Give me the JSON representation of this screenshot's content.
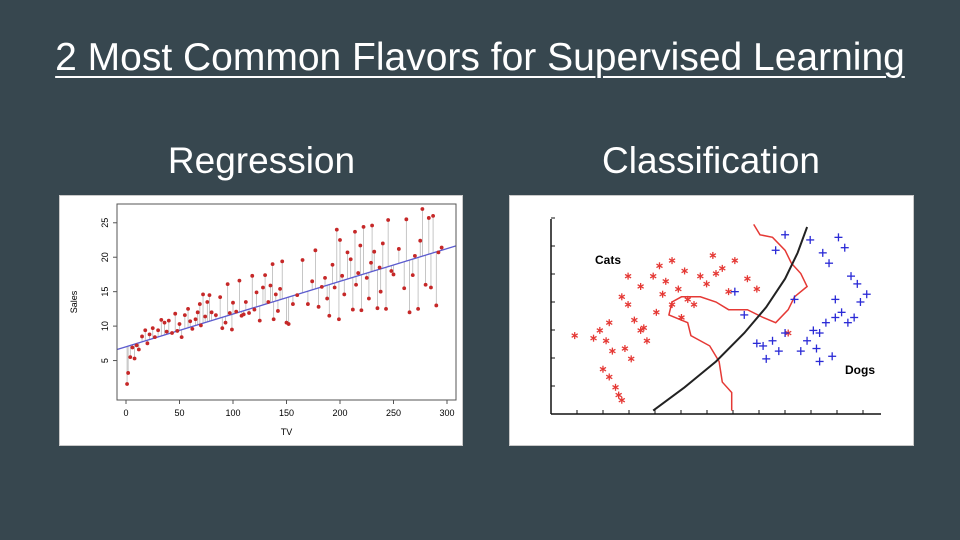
{
  "slide": {
    "title": "2 Most Common Flavors for Supervised Learning",
    "left_heading": "Regression",
    "right_heading": "Classification",
    "background_color": "#37474f"
  },
  "chart_data": [
    {
      "type": "scatter",
      "xlabel": "TV",
      "ylabel": "Sales",
      "xlim": [
        0,
        300
      ],
      "ylim": [
        0,
        27
      ],
      "x_ticks": [
        "0",
        "50",
        "100",
        "150",
        "200",
        "250",
        "300"
      ],
      "y_ticks": [
        "5",
        "10",
        "15",
        "20",
        "25"
      ],
      "grid": false,
      "point_color": "#c62828",
      "fit_line_color": "#5c5ccf",
      "residual_color": "#b8b8b8",
      "fit_line": {
        "intercept": 7.0,
        "slope": 0.0475
      },
      "points": {
        "x": [
          1,
          2,
          4,
          6,
          8,
          10,
          12,
          15,
          18,
          20,
          22,
          25,
          27,
          30,
          33,
          36,
          38,
          40,
          43,
          46,
          48,
          50,
          52,
          55,
          58,
          60,
          62,
          65,
          67,
          69,
          70,
          72,
          74,
          76,
          78,
          80,
          84,
          88,
          90,
          93,
          95,
          97,
          99,
          100,
          103,
          106,
          108,
          110,
          112,
          115,
          118,
          120,
          122,
          125,
          128,
          130,
          133,
          135,
          137,
          138,
          140,
          142,
          144,
          146,
          150,
          152,
          156,
          160,
          165,
          170,
          174,
          177,
          180,
          183,
          186,
          188,
          190,
          193,
          195,
          197,
          199,
          200,
          202,
          204,
          207,
          210,
          212,
          214,
          215,
          217,
          219,
          220,
          222,
          225,
          227,
          229,
          230,
          232,
          235,
          237,
          238,
          240,
          243,
          245,
          248,
          250,
          255,
          260,
          262,
          265,
          268,
          270,
          273,
          275,
          277,
          280,
          283,
          285,
          287,
          290,
          292,
          295
        ],
        "y": [
          1.6,
          3.2,
          5.5,
          6.9,
          5.3,
          7.2,
          6.6,
          8.5,
          9.4,
          7.5,
          8.8,
          9.7,
          8.4,
          9.4,
          10.9,
          10.5,
          9.2,
          10.8,
          9.0,
          11.8,
          9.3,
          10.3,
          8.4,
          11.6,
          12.5,
          10.7,
          9.6,
          11.0,
          12.0,
          13.2,
          10.1,
          14.6,
          11.4,
          13.5,
          14.5,
          12.0,
          11.6,
          14.2,
          9.7,
          10.5,
          16.1,
          11.9,
          9.5,
          13.4,
          12.1,
          16.6,
          11.5,
          11.7,
          13.5,
          11.9,
          17.3,
          12.4,
          14.9,
          10.8,
          15.6,
          17.4,
          13.5,
          15.9,
          19.0,
          11.0,
          14.6,
          12.2,
          15.4,
          19.4,
          10.5,
          10.3,
          13.2,
          14.5,
          19.6,
          13.2,
          16.5,
          21.0,
          12.8,
          15.7,
          17.0,
          14.0,
          11.5,
          18.9,
          15.6,
          24.0,
          11.0,
          22.5,
          17.3,
          14.6,
          20.7,
          19.7,
          12.4,
          23.7,
          16.0,
          17.7,
          21.7,
          12.3,
          24.4,
          17.0,
          14.0,
          19.2,
          24.6,
          20.8,
          12.6,
          18.5,
          15.0,
          22.0,
          12.5,
          25.4,
          18.0,
          17.5,
          21.2,
          15.5,
          25.5,
          12.0,
          17.4,
          20.2,
          12.5,
          22.4,
          27.0,
          16.0,
          25.7,
          15.6,
          26.0,
          13.0,
          20.7,
          21.4
        ]
      }
    },
    {
      "type": "scatter",
      "annotations": [
        "Cats",
        "Dogs"
      ],
      "cats_color": "#e53935",
      "dogs_color": "#2a2ad6",
      "boundary_color": "#e53935",
      "linear_boundary_color": "#222222",
      "cats": {
        "x": [
          0.5,
          1.6,
          1.4,
          1.6,
          1.8,
          1.9,
          2.0,
          1.5,
          1.7,
          1.3,
          1.1,
          2.3,
          2.1,
          2.7,
          2.2,
          2.6,
          3.0,
          3.2,
          3.4,
          3.6,
          3.3,
          3.8,
          4.1,
          4.3,
          4.7,
          5.0,
          5.4,
          5.6,
          6.0,
          6.3,
          5.2,
          4.9,
          3.6,
          3.9,
          4.5,
          4.0,
          2.4,
          2.6,
          2.8,
          3.1,
          2.0,
          2.2,
          7.3
        ],
        "y": [
          2.8,
          3.3,
          1.5,
          1.2,
          0.8,
          0.5,
          0.3,
          2.6,
          2.2,
          3.0,
          2.7,
          1.9,
          2.3,
          3.1,
          4.0,
          4.7,
          5.1,
          5.5,
          4.9,
          5.7,
          4.4,
          4.6,
          4.2,
          4.0,
          4.8,
          5.2,
          4.5,
          5.7,
          5.0,
          4.6,
          5.4,
          5.9,
          4.0,
          3.5,
          5.1,
          5.3,
          3.4,
          3.0,
          2.6,
          3.7,
          4.3,
          5.1,
          2.9
        ]
      },
      "dogs": {
        "x": [
          7.0,
          7.2,
          6.5,
          6.3,
          6.6,
          6.8,
          7.7,
          7.9,
          8.1,
          8.3,
          8.5,
          8.8,
          9.0,
          8.7,
          9.2,
          9.4,
          8.2,
          7.5,
          9.6,
          9.8,
          8.9,
          9.1,
          8.0,
          7.2,
          6.9,
          8.4,
          8.6,
          9.3,
          9.5,
          8.8,
          8.3,
          5.9,
          5.6
        ],
        "y": [
          2.2,
          2.9,
          2.4,
          2.5,
          1.9,
          2.6,
          2.2,
          2.6,
          3.0,
          2.9,
          3.3,
          3.5,
          3.7,
          2.0,
          3.3,
          3.5,
          2.3,
          4.2,
          4.1,
          4.4,
          6.6,
          6.2,
          6.5,
          6.7,
          6.1,
          6.0,
          5.6,
          5.1,
          4.8,
          4.2,
          1.8,
          3.6,
          4.5
        ]
      }
    }
  ]
}
